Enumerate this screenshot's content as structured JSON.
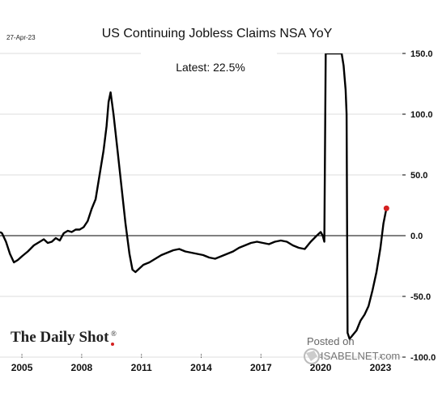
{
  "chart_data": {
    "type": "line",
    "title": "US Continuing Jobless Claims NSA YoY",
    "date_label": "27-Apr-23",
    "annotation": "Latest:  22.5%",
    "xlabel": "",
    "ylabel": "",
    "y_axis_side": "right",
    "xlim": [
      2003.9,
      2024.1
    ],
    "ylim": [
      -100,
      150
    ],
    "y_ticks": [
      "150.0",
      "100.0",
      "50.0",
      "0.0",
      "-50.0",
      "-100.0"
    ],
    "y_tick_values": [
      150,
      100,
      50,
      0,
      -50,
      -100
    ],
    "x_ticks": [
      "2005",
      "2008",
      "2011",
      "2014",
      "2017",
      "2020",
      "2023"
    ],
    "x_tick_values": [
      2005,
      2008,
      2011,
      2014,
      2017,
      2020,
      2023
    ],
    "grid": "horizontal",
    "series": [
      {
        "color": "#000000",
        "x": [
          2003.9,
          2004.0,
          2004.2,
          2004.4,
          2004.6,
          2004.8,
          2005.0,
          2005.3,
          2005.6,
          2005.9,
          2006.1,
          2006.3,
          2006.5,
          2006.7,
          2006.9,
          2007.1,
          2007.3,
          2007.5,
          2007.7,
          2007.9,
          2008.1,
          2008.3,
          2008.5,
          2008.7,
          2008.9,
          2009.1,
          2009.25,
          2009.35,
          2009.45,
          2009.6,
          2009.8,
          2010.0,
          2010.2,
          2010.4,
          2010.55,
          2010.7,
          2010.9,
          2011.1,
          2011.4,
          2011.7,
          2012.0,
          2012.3,
          2012.6,
          2012.9,
          2013.2,
          2013.5,
          2013.8,
          2014.1,
          2014.4,
          2014.7,
          2015.0,
          2015.3,
          2015.6,
          2015.9,
          2016.2,
          2016.5,
          2016.8,
          2017.1,
          2017.4,
          2017.7,
          2018.0,
          2018.3,
          2018.6,
          2018.9,
          2019.2,
          2019.5,
          2019.8,
          2020.0,
          2020.1,
          2020.18,
          2020.25,
          2020.3,
          2020.35,
          2021.05,
          2021.15,
          2021.25,
          2021.3,
          2021.35,
          2021.45,
          2021.6,
          2021.8,
          2022.0,
          2022.2,
          2022.4,
          2022.6,
          2022.8,
          2023.0,
          2023.15,
          2023.3
        ],
        "values": [
          3,
          2,
          -5,
          -15,
          -22,
          -20,
          -17,
          -13,
          -8,
          -5,
          -3,
          -6,
          -5,
          -2,
          -4,
          2,
          4,
          3,
          5,
          5,
          7,
          12,
          22,
          30,
          50,
          70,
          90,
          110,
          118,
          100,
          70,
          40,
          10,
          -15,
          -28,
          -30,
          -27,
          -24,
          -22,
          -19,
          -16,
          -14,
          -12,
          -11,
          -13,
          -14,
          -15,
          -16,
          -18,
          -19,
          -17,
          -15,
          -13,
          -10,
          -8,
          -6,
          -5,
          -6,
          -7,
          -5,
          -4,
          -5,
          -8,
          -10,
          -11,
          -5,
          0,
          3,
          0,
          -5,
          150,
          150,
          150,
          150,
          140,
          120,
          100,
          -80,
          -85,
          -82,
          -78,
          -70,
          -65,
          -58,
          -45,
          -30,
          -10,
          10,
          22.5
        ]
      }
    ],
    "latest_point": {
      "x": 2023.3,
      "y": 22.5,
      "color": "#d42020"
    }
  },
  "branding": {
    "source_logo": "The Daily Shot",
    "source_logo_mark": "®",
    "posted_on": "Posted on",
    "site": "ISABELNET.com"
  }
}
